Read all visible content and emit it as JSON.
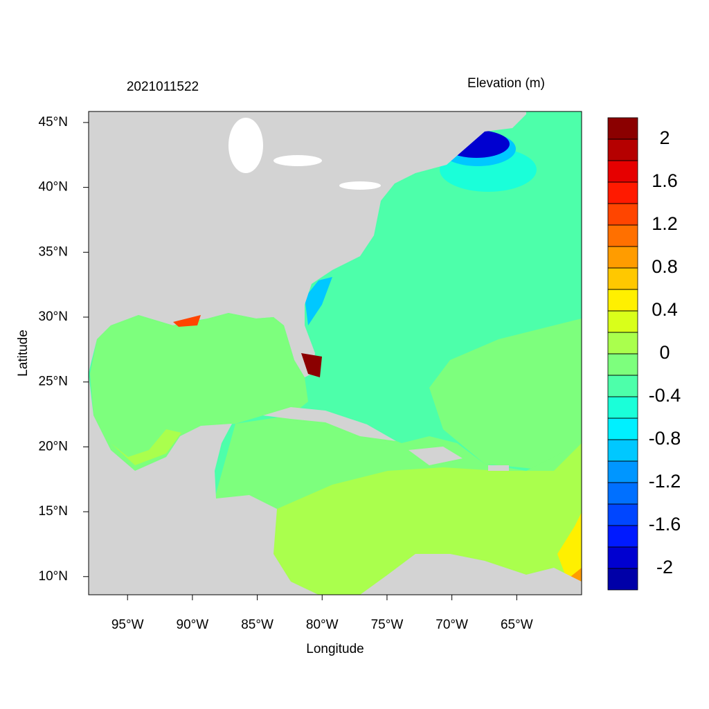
{
  "chart_data": {
    "type": "contour-map",
    "title": "2021011522",
    "x_label": "Longitude",
    "y_label": "Latitude",
    "xlim": [
      -98,
      -60
    ],
    "ylim": [
      8.6,
      45.85
    ],
    "xticks": [
      {
        "value": -95,
        "label": "95°W"
      },
      {
        "value": -90,
        "label": "90°W"
      },
      {
        "value": -85,
        "label": "85°W"
      },
      {
        "value": -80,
        "label": "80°W"
      },
      {
        "value": -75,
        "label": "75°W"
      },
      {
        "value": -70,
        "label": "70°W"
      },
      {
        "value": -65,
        "label": "65°W"
      }
    ],
    "yticks": [
      {
        "value": 10,
        "label": "10°N"
      },
      {
        "value": 15,
        "label": "15°N"
      },
      {
        "value": 20,
        "label": "20°N"
      },
      {
        "value": 25,
        "label": "25°N"
      },
      {
        "value": 30,
        "label": "30°N"
      },
      {
        "value": 35,
        "label": "35°N"
      },
      {
        "value": 40,
        "label": "40°N"
      },
      {
        "value": 45,
        "label": "45°N"
      }
    ],
    "colorbar": {
      "title": "Elevation (m)",
      "levels": [
        -2,
        -1.8,
        -1.6,
        -1.4,
        -1.2,
        -1,
        -0.8,
        -0.6,
        -0.4,
        -0.2,
        0,
        0.2,
        0.4,
        0.6,
        0.8,
        1,
        1.2,
        1.4,
        1.6,
        1.8,
        2
      ],
      "colors": [
        "#0000a8",
        "#0000d0",
        "#001aff",
        "#0046ff",
        "#0070ff",
        "#0096ff",
        "#00c8ff",
        "#00f0ff",
        "#1affd9",
        "#4dffaa",
        "#7dff7d",
        "#aaff4d",
        "#d9ff1a",
        "#fff000",
        "#ffc800",
        "#ff9c00",
        "#ff7000",
        "#ff4500",
        "#ff1a00",
        "#e60000",
        "#b50000",
        "#8b0000"
      ],
      "ticks": [
        -2,
        -1.6,
        -1.2,
        -0.8,
        -0.4,
        0,
        0.4,
        0.8,
        1.2,
        1.6,
        2
      ]
    }
  }
}
